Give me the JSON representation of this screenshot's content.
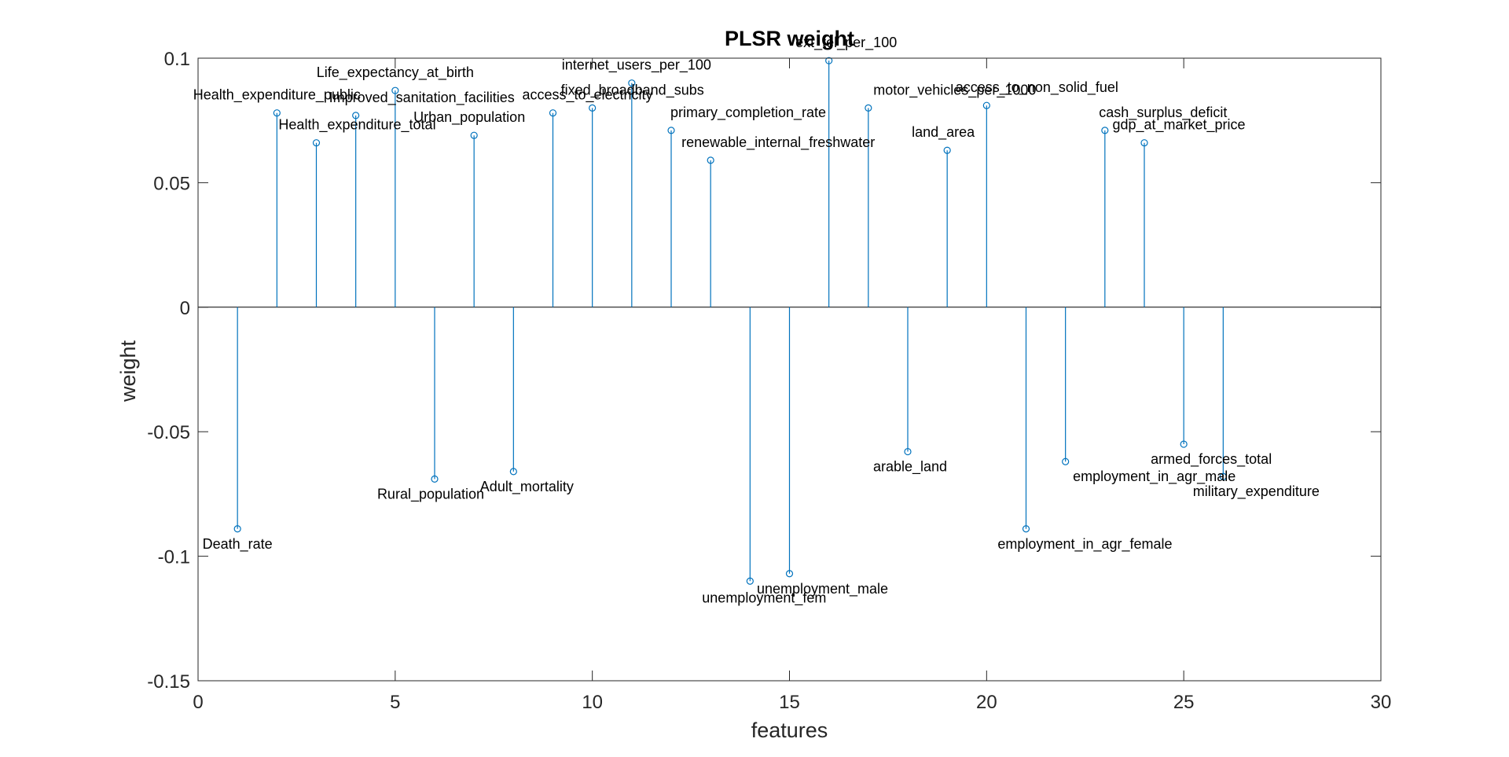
{
  "chart_data": {
    "type": "stem",
    "title": "PLSR weight",
    "xlabel": "features",
    "ylabel": "weight",
    "xlim": [
      0,
      30
    ],
    "ylim": [
      -0.15,
      0.1
    ],
    "xticks": [
      0,
      5,
      10,
      15,
      20,
      25,
      30
    ],
    "yticks": [
      -0.15,
      -0.1,
      -0.05,
      0,
      0.05,
      0.1
    ],
    "xtick_labels": [
      "0",
      "5",
      "10",
      "15",
      "20",
      "25",
      "30"
    ],
    "ytick_labels": [
      "-0.15",
      "-0.1",
      "-0.05",
      "0",
      "0.05",
      "0.1"
    ],
    "series_color": "#0072BD",
    "points": [
      {
        "x": 1,
        "y": -0.089,
        "label": "Death_rate"
      },
      {
        "x": 2,
        "y": 0.078,
        "label": "Health_expenditure_public"
      },
      {
        "x": 3,
        "y": 0.066,
        "label": "Health_expenditure_total"
      },
      {
        "x": 4,
        "y": 0.077,
        "label": "Improved_sanitation_facilities"
      },
      {
        "x": 5,
        "y": 0.087,
        "label": "Life_expectancy_at_birth"
      },
      {
        "x": 6,
        "y": -0.069,
        "label": "Rural_population"
      },
      {
        "x": 7,
        "y": 0.069,
        "label": "Urban_population"
      },
      {
        "x": 8,
        "y": -0.066,
        "label": "Adult_mortality"
      },
      {
        "x": 9,
        "y": 0.078,
        "label": "access_to_electricity"
      },
      {
        "x": 10,
        "y": 0.08,
        "label": "fixed_broadband_subs"
      },
      {
        "x": 11,
        "y": 0.09,
        "label": "internet_users_per_100"
      },
      {
        "x": 12,
        "y": 0.071,
        "label": "primary_completion_rate"
      },
      {
        "x": 13,
        "y": 0.059,
        "label": "renewable_internal_freshwater"
      },
      {
        "x": 14,
        "y": -0.11,
        "label": "unemployment_fem"
      },
      {
        "x": 15,
        "y": -0.107,
        "label": "unemployment_male"
      },
      {
        "x": 16,
        "y": 0.099,
        "label": "ext_tel_per_100"
      },
      {
        "x": 17,
        "y": 0.08,
        "label": "motor_vehicles_per_1000"
      },
      {
        "x": 18,
        "y": -0.058,
        "label": "arable_land"
      },
      {
        "x": 19,
        "y": 0.063,
        "label": "land_area"
      },
      {
        "x": 20,
        "y": 0.081,
        "label": "access_to_non_solid_fuel"
      },
      {
        "x": 21,
        "y": -0.089,
        "label": "employment_in_agr_female"
      },
      {
        "x": 22,
        "y": -0.062,
        "label": "employment_in_agr_male"
      },
      {
        "x": 23,
        "y": 0.071,
        "label": "cash_surplus_deficit"
      },
      {
        "x": 24,
        "y": 0.066,
        "label": "gdp_at_market_price"
      },
      {
        "x": 25,
        "y": -0.055,
        "label": "armed_forces_total"
      },
      {
        "x": 26,
        "y": -0.068,
        "label": "military_expenditure"
      }
    ]
  }
}
